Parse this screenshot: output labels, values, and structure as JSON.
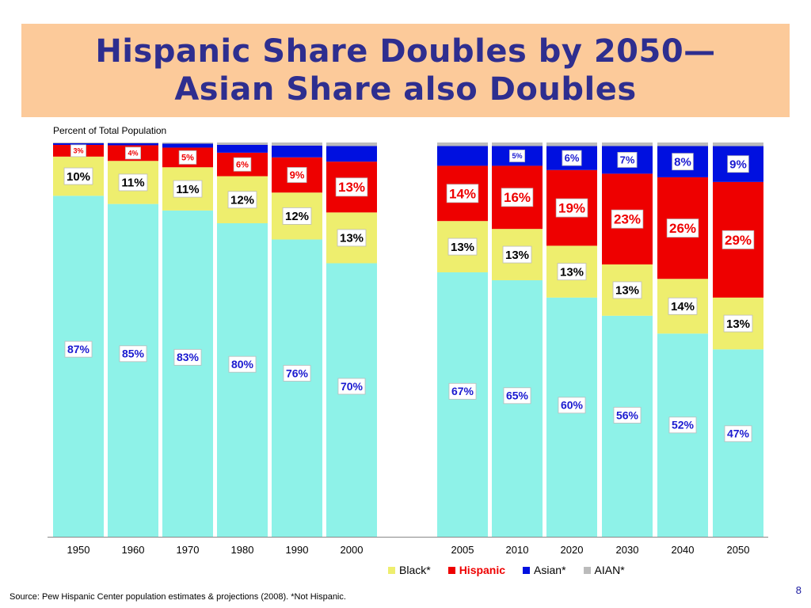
{
  "title": {
    "line1": "Hispanic Share Doubles by 2050—",
    "line2": "Asian Share also Doubles"
  },
  "subtitle": "Percent of Total Population",
  "source": "Source:  Pew Hispanic Center population estimates & projections (2008).  *Not Hispanic.",
  "page_number": "8",
  "colors": {
    "white_non_hispanic": "#8ef2e8",
    "black": "#eeee6e",
    "hispanic": "#ee0000",
    "asian": "#0010e0",
    "aian": "#bbbbbb",
    "title_bg": "#fcca9a",
    "title_text": "#2e2e8f"
  },
  "chart_data": {
    "type": "bar",
    "stacked": true,
    "normalized_to": 100,
    "categories": [
      "1950",
      "1960",
      "1970",
      "1980",
      "1990",
      "2000",
      "2005",
      "2010",
      "2020",
      "2030",
      "2040",
      "2050"
    ],
    "series": [
      {
        "name": "",
        "values": [
          87,
          85,
          83,
          80,
          76,
          70,
          67,
          65,
          60,
          56,
          52,
          47
        ],
        "labels": [
          "87%",
          "85%",
          "83%",
          "80%",
          "76%",
          "70%",
          "67%",
          "65%",
          "60%",
          "56%",
          "52%",
          "47%"
        ]
      },
      {
        "name": "Black*",
        "values": [
          10,
          11,
          11,
          12,
          12,
          13,
          13,
          13,
          13,
          13,
          14,
          13
        ],
        "labels": [
          "10%",
          "11%",
          "11%",
          "12%",
          "12%",
          "13%",
          "13%",
          "13%",
          "13%",
          "13%",
          "14%",
          "13%"
        ]
      },
      {
        "name": "Hispanic",
        "values": [
          3,
          4,
          5,
          6,
          9,
          13,
          14,
          16,
          19,
          23,
          26,
          29
        ],
        "labels": [
          "3%",
          "4%",
          "5%",
          "6%",
          "9%",
          "13%",
          "14%",
          "16%",
          "19%",
          "23%",
          "26%",
          "29%"
        ]
      },
      {
        "name": "Asian*",
        "values": [
          0.4,
          0.5,
          1,
          2,
          3,
          4,
          5,
          5,
          6,
          7,
          8,
          9
        ],
        "labels": [
          "",
          "",
          "",
          "",
          "",
          "",
          "",
          "5%",
          "6%",
          "7%",
          "8%",
          "9%"
        ]
      },
      {
        "name": "AIAN*",
        "values": [
          0.2,
          0.2,
          0.3,
          0.6,
          0.8,
          0.9,
          0.9,
          0.9,
          0.9,
          0.9,
          0.9,
          0.9
        ],
        "labels": [
          "",
          "",
          "",
          "",
          "",
          "",
          "",
          "",
          "",
          "",
          "",
          ""
        ]
      }
    ],
    "ylim": [
      0,
      100
    ],
    "grid": false,
    "legend_position": "bottom"
  }
}
